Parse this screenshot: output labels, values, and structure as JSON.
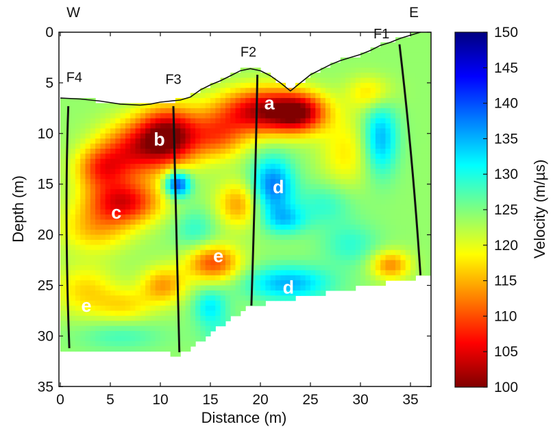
{
  "chart_data": {
    "type": "heatmap",
    "title": "",
    "xlabel": "Distance (m)",
    "ylabel": "Depth (m)",
    "xlim": [
      0,
      37
    ],
    "ylim": [
      35,
      0
    ],
    "x_ticks": [
      "0",
      "5",
      "10",
      "15",
      "20",
      "25",
      "30",
      "35"
    ],
    "y_ticks": [
      "0",
      "5",
      "10",
      "15",
      "20",
      "25",
      "30",
      "35"
    ],
    "colorbar": {
      "label": "Velocity (m/µs)",
      "range": [
        100,
        150
      ],
      "ticks": [
        "150",
        "145",
        "140",
        "135",
        "130",
        "125",
        "120",
        "115",
        "110",
        "105",
        "100"
      ],
      "colormap": "jet"
    },
    "background_velocity": 126,
    "compass": {
      "left": "W",
      "right": "E"
    },
    "surface_profile": [
      [
        0,
        6.5
      ],
      [
        2,
        6.6
      ],
      [
        4,
        6.8
      ],
      [
        6,
        7.1
      ],
      [
        8,
        7.2
      ],
      [
        9,
        7.1
      ],
      [
        10,
        6.9
      ],
      [
        12,
        6.7
      ],
      [
        13,
        6.4
      ],
      [
        14,
        5.7
      ],
      [
        15,
        5.2
      ],
      [
        16,
        4.8
      ],
      [
        17,
        4.3
      ],
      [
        18,
        3.8
      ],
      [
        19,
        3.6
      ],
      [
        20,
        3.8
      ],
      [
        21,
        4.3
      ],
      [
        22,
        5.0
      ],
      [
        23,
        5.8
      ],
      [
        24,
        5.0
      ],
      [
        25,
        4.2
      ],
      [
        26,
        3.7
      ],
      [
        27,
        3.2
      ],
      [
        28,
        2.8
      ],
      [
        29,
        2.5
      ],
      [
        30,
        2.2
      ],
      [
        31,
        1.8
      ],
      [
        32,
        1.3
      ],
      [
        33,
        1.0
      ],
      [
        34,
        0.6
      ],
      [
        35,
        0.3
      ],
      [
        36,
        0
      ]
    ],
    "section_bottom": [
      [
        0,
        31.6
      ],
      [
        8,
        31.6
      ],
      [
        12,
        31.8
      ],
      [
        19,
        27.0
      ],
      [
        37,
        24.0
      ]
    ],
    "faults": [
      {
        "name": "F1",
        "points": [
          [
            33.9,
            1.2
          ],
          [
            35.2,
            12
          ],
          [
            36.0,
            24
          ]
        ],
        "label_at": [
          32.1,
          0.6
        ]
      },
      {
        "name": "F2",
        "points": [
          [
            19.7,
            4.2
          ],
          [
            19.5,
            15
          ],
          [
            19.1,
            27.0
          ]
        ],
        "label_at": [
          18.8,
          2.4
        ]
      },
      {
        "name": "F3",
        "points": [
          [
            11.3,
            7.3
          ],
          [
            11.6,
            20
          ],
          [
            11.9,
            31.6
          ]
        ],
        "label_at": [
          11.3,
          5.1
        ]
      },
      {
        "name": "F4",
        "points": [
          [
            0.8,
            7.3
          ],
          [
            0.4,
            18
          ],
          [
            0.9,
            31.2
          ]
        ],
        "label_at": [
          1.4,
          4.9
        ]
      }
    ],
    "anomalies": [
      {
        "x": 20.5,
        "y": 7.8,
        "sx": 3.3,
        "sy": 1.6,
        "v": 148
      },
      {
        "x": 24.0,
        "y": 8.0,
        "sx": 1.8,
        "sy": 1.3,
        "v": 140
      },
      {
        "x": 10.8,
        "y": 10.3,
        "sx": 2.2,
        "sy": 2.0,
        "v": 150
      },
      {
        "x": 7.0,
        "y": 11.8,
        "sx": 2.4,
        "sy": 2.0,
        "v": 140
      },
      {
        "x": 4.0,
        "y": 13.5,
        "sx": 1.8,
        "sy": 1.5,
        "v": 138
      },
      {
        "x": 6.3,
        "y": 16.8,
        "sx": 2.6,
        "sy": 1.5,
        "v": 144
      },
      {
        "x": 3.5,
        "y": 19.5,
        "sx": 2.5,
        "sy": 1.6,
        "v": 134
      },
      {
        "x": 15.8,
        "y": 10.3,
        "sx": 2.0,
        "sy": 1.6,
        "v": 137
      },
      {
        "x": 17.8,
        "y": 17.0,
        "sx": 1.6,
        "sy": 1.6,
        "v": 136
      },
      {
        "x": 15.3,
        "y": 22.8,
        "sx": 1.9,
        "sy": 1.3,
        "v": 140
      },
      {
        "x": 10.3,
        "y": 25.0,
        "sx": 1.6,
        "sy": 1.3,
        "v": 136
      },
      {
        "x": 2.5,
        "y": 25.5,
        "sx": 2.2,
        "sy": 1.8,
        "v": 133
      },
      {
        "x": 6.5,
        "y": 27.0,
        "sx": 2.0,
        "sy": 1.2,
        "v": 132
      },
      {
        "x": 33.0,
        "y": 23.0,
        "sx": 1.4,
        "sy": 1.0,
        "v": 137
      },
      {
        "x": 28.5,
        "y": 12.0,
        "sx": 1.8,
        "sy": 2.5,
        "v": 132
      },
      {
        "x": 31.0,
        "y": 6.0,
        "sx": 1.6,
        "sy": 1.2,
        "v": 133
      },
      {
        "x": 21.2,
        "y": 15.2,
        "sx": 1.5,
        "sy": 2.0,
        "v": 112
      },
      {
        "x": 22.5,
        "y": 18.5,
        "sx": 1.5,
        "sy": 1.0,
        "v": 118
      },
      {
        "x": 11.7,
        "y": 15.0,
        "sx": 0.9,
        "sy": 0.9,
        "v": 108
      },
      {
        "x": 22.8,
        "y": 24.8,
        "sx": 3.0,
        "sy": 1.2,
        "v": 115
      },
      {
        "x": 15.0,
        "y": 27.2,
        "sx": 1.2,
        "sy": 1.3,
        "v": 118
      },
      {
        "x": 32.0,
        "y": 10.5,
        "sx": 1.2,
        "sy": 2.5,
        "v": 115
      },
      {
        "x": 26.5,
        "y": 17.0,
        "sx": 2.0,
        "sy": 1.5,
        "v": 121
      },
      {
        "x": 29.0,
        "y": 21.0,
        "sx": 2.0,
        "sy": 1.5,
        "v": 121
      },
      {
        "x": 13.5,
        "y": 19.5,
        "sx": 1.5,
        "sy": 1.5,
        "v": 121
      },
      {
        "x": 6.0,
        "y": 30.0,
        "sx": 3.0,
        "sy": 1.0,
        "v": 122
      },
      {
        "x": 17.5,
        "y": 30.0,
        "sx": 2.0,
        "sy": 1.0,
        "v": 120
      }
    ],
    "zone_labels": [
      {
        "text": "a",
        "x": 20.9,
        "y": 7.0
      },
      {
        "text": "b",
        "x": 9.9,
        "y": 10.6
      },
      {
        "text": "c",
        "x": 5.6,
        "y": 17.8
      },
      {
        "text": "d",
        "x": 21.8,
        "y": 15.3
      },
      {
        "text": "d",
        "x": 22.8,
        "y": 25.2
      },
      {
        "text": "e",
        "x": 15.8,
        "y": 22.1
      },
      {
        "text": "e",
        "x": 2.6,
        "y": 27.0
      }
    ]
  }
}
